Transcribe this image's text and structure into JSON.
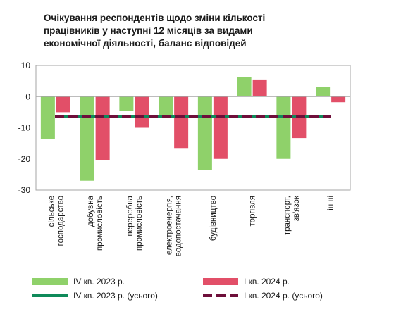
{
  "chart_data": {
    "type": "bar",
    "title_lines": [
      "Очікування респондентів щодо зміни кількості",
      "працівників у наступні 12 місяців за видами",
      "економічної діяльності, баланс відповідей"
    ],
    "categories": [
      [
        "сільське",
        "господарство"
      ],
      [
        "добувна",
        "промисловість"
      ],
      [
        "переробна",
        "промисловість"
      ],
      [
        "електроенергія,",
        "водопостачання"
      ],
      [
        "будівництво"
      ],
      [
        "торгівля"
      ],
      [
        "транспорт,",
        "зв'язок"
      ],
      [
        "інші"
      ]
    ],
    "series": [
      {
        "name": "IV кв. 2023 р.",
        "color": "#8fd16a",
        "values": [
          -13.5,
          -27,
          -4.5,
          -6,
          -23.5,
          6.2,
          -20,
          3.2
        ]
      },
      {
        "name": "І кв. 2024 р.",
        "color": "#e24f68",
        "values": [
          -5,
          -20.5,
          -10,
          -16.5,
          -20,
          5.5,
          -13.3,
          -1.8
        ]
      }
    ],
    "reference_lines": [
      {
        "name": "IV кв. 2023 р. (усього)",
        "color": "#0f8a5a",
        "style": "solid",
        "value": -6.5
      },
      {
        "name": "І кв. 2024 р. (усього)",
        "color": "#6e0f3a",
        "style": "dashed",
        "value": -6.3
      }
    ],
    "ylim": [
      -30,
      10
    ],
    "yticks": [
      10,
      0,
      -10,
      -20,
      -30
    ],
    "grid": false,
    "legend_position": "bottom"
  }
}
